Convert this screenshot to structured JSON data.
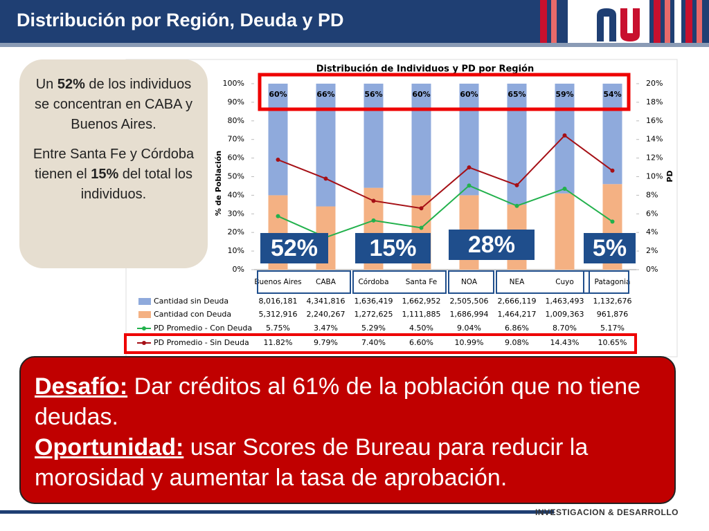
{
  "header": {
    "title": "Distribución por Región, Deuda y PD"
  },
  "callout": {
    "p1": [
      "Un ",
      "52%",
      " de los individuos se concentran en CABA y Buenos Aires."
    ],
    "p2": [
      "Entre Santa Fe y Córdoba tienen el ",
      "15%",
      " del total los individuos."
    ]
  },
  "highlights": [
    "52%",
    "15%",
    "28%",
    "5%"
  ],
  "message": {
    "l1": [
      "Desafío:",
      " Dar créditos al 61% de la población que no tiene deudas."
    ],
    "l2": [
      "Oportunidad:",
      " usar Scores de Bureau para reducir la morosidad y aumentar la tasa de aprobación."
    ]
  },
  "footer": "INVESTIGACION & DESARROLLO",
  "chart_data": {
    "type": "stacked_bar_line",
    "title": "Distribución de Individuos y PD por Región",
    "ylabel": "% de Población",
    "y2label": "PD",
    "categories": [
      "Buenos Aires",
      "CABA",
      "Córdoba",
      "Santa Fe",
      "NOA",
      "NEA",
      "Cuyo",
      "Patagonia"
    ],
    "ylim": [
      0,
      100
    ],
    "yticks": [
      {
        "value": 0,
        "label": "0%"
      },
      {
        "value": 10,
        "label": "10%"
      },
      {
        "value": 20,
        "label": "20%"
      },
      {
        "value": 30,
        "label": "30%"
      },
      {
        "value": 40,
        "label": "40%"
      },
      {
        "value": 50,
        "label": "50%"
      },
      {
        "value": 60,
        "label": "60%"
      },
      {
        "value": 70,
        "label": "70%"
      },
      {
        "value": 80,
        "label": "80%"
      },
      {
        "value": 90,
        "label": "90%"
      },
      {
        "value": 100,
        "label": "100%"
      }
    ],
    "y2lim": [
      0,
      20
    ],
    "y2ticks": [
      {
        "value": 0,
        "label": "0%"
      },
      {
        "value": 2,
        "label": "2%"
      },
      {
        "value": 4,
        "label": "4%"
      },
      {
        "value": 6,
        "label": "6%"
      },
      {
        "value": 8,
        "label": "8%"
      },
      {
        "value": 10,
        "label": "10%"
      },
      {
        "value": 12,
        "label": "12%"
      },
      {
        "value": 14,
        "label": "14%"
      },
      {
        "value": 16,
        "label": "16%"
      },
      {
        "value": 18,
        "label": "18%"
      },
      {
        "value": 20,
        "label": "20%"
      }
    ],
    "series": [
      {
        "name": "Cantidad sin Deuda",
        "color": "#8faadc",
        "values": [
          60,
          66,
          56,
          60,
          60,
          65,
          59,
          54
        ],
        "value_labels": [
          "60%",
          "66%",
          "56%",
          "60%",
          "60%",
          "65%",
          "59%",
          "54%"
        ],
        "table": [
          "8,016,181",
          "4,341,816",
          "1,636,419",
          "1,662,952",
          "2,505,506",
          "2,666,119",
          "1,463,493",
          "1,132,676"
        ]
      },
      {
        "name": "Cantidad con Deuda",
        "color": "#f4b183",
        "values": [
          40,
          34,
          44,
          40,
          40,
          35,
          41,
          46
        ],
        "table": [
          "5,312,916",
          "2,240,267",
          "1,272,625",
          "1,111,885",
          "1,686,994",
          "1,464,217",
          "1,009,363",
          "961,876"
        ]
      },
      {
        "name": "PD Promedio - Con Deuda",
        "color": "#22b14c",
        "axis": "y2",
        "values": [
          5.75,
          3.47,
          5.29,
          4.5,
          9.04,
          6.86,
          8.7,
          5.17
        ],
        "value_labels": [
          "5.75%",
          "3.47%",
          "5.29%",
          "4.50%",
          "9.04%",
          "6.86%",
          "8.70%",
          "5.17%"
        ]
      },
      {
        "name": "PD Promedio - Sin Deuda",
        "color": "#a50f15",
        "axis": "y2",
        "values": [
          11.82,
          9.79,
          7.4,
          6.6,
          10.99,
          9.08,
          14.43,
          10.65
        ],
        "value_labels": [
          "11.82%",
          "9.79%",
          "7.40%",
          "6.60%",
          "10.99%",
          "9.08%",
          "14.43%",
          "10.65%"
        ]
      }
    ]
  }
}
